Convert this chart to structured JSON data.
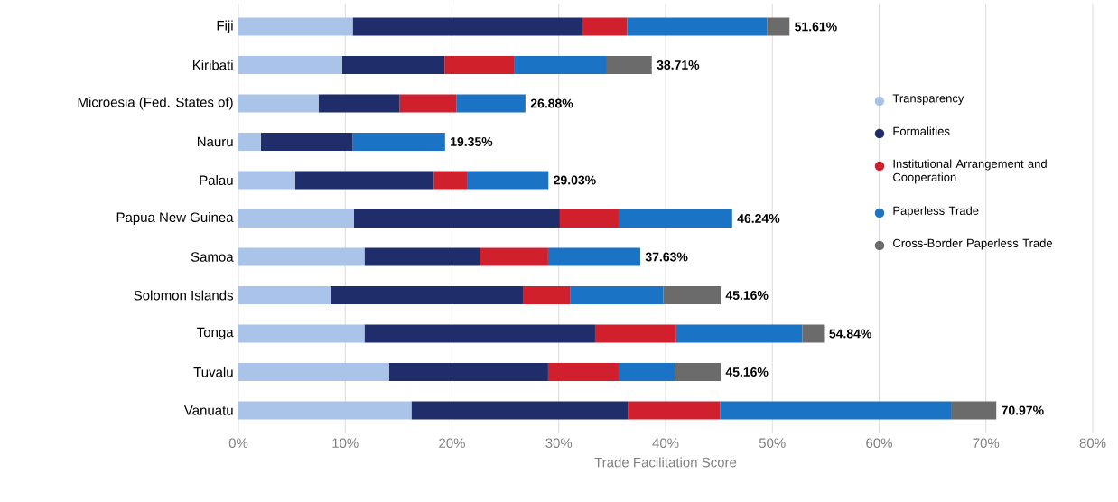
{
  "chart_data": {
    "type": "bar",
    "orientation": "horizontal",
    "stacked": true,
    "xlabel": "Trade Facilitation Score",
    "categories": [
      "Fiji",
      "Kiribati",
      "Microesia (Fed. States of)",
      "Nauru",
      "Palau",
      "Papua New Guinea",
      "Samoa",
      "Solomon Islands",
      "Tonga",
      "Tuvalu",
      "Vanuatu"
    ],
    "series": [
      {
        "name": "Transparency",
        "color": "#a9c4e8",
        "values": [
          10.7,
          9.7,
          7.5,
          2.1,
          5.3,
          10.8,
          11.8,
          8.6,
          11.8,
          14.1,
          16.2
        ]
      },
      {
        "name": "Formalities",
        "color": "#1f2d6b",
        "values": [
          21.5,
          9.6,
          7.6,
          8.6,
          13.0,
          19.3,
          10.8,
          18.1,
          21.6,
          14.9,
          20.3
        ]
      },
      {
        "name": "Institutional Arrangement and Cooperation",
        "color": "#d0202e",
        "values": [
          4.2,
          6.5,
          5.3,
          0,
          3.1,
          5.5,
          6.4,
          4.4,
          7.6,
          6.6,
          8.6
        ]
      },
      {
        "name": "Paperless Trade",
        "color": "#1a73c4",
        "values": [
          13.1,
          8.7,
          6.48,
          8.65,
          7.63,
          10.64,
          8.63,
          8.7,
          11.8,
          5.3,
          21.7
        ]
      },
      {
        "name": "Cross-Border Paperless Trade",
        "color": "#6b6b6b",
        "values": [
          2.11,
          4.21,
          0,
          0,
          0,
          0,
          0,
          5.36,
          2.04,
          4.26,
          4.17
        ]
      }
    ],
    "totals": [
      "51.61%",
      "38.71%",
      "26.88%",
      "19.35%",
      "29.03%",
      "46.24%",
      "37.63%",
      "45.16%",
      "54.84%",
      "45.16%",
      "70.97%"
    ],
    "xlim": [
      0,
      80
    ],
    "xticks": [
      {
        "value": 0,
        "label": "0%"
      },
      {
        "value": 10,
        "label": "10%"
      },
      {
        "value": 20,
        "label": "20%"
      },
      {
        "value": 30,
        "label": "30%"
      },
      {
        "value": 40,
        "label": "40%"
      },
      {
        "value": 50,
        "label": "50%"
      },
      {
        "value": 60,
        "label": "60%"
      },
      {
        "value": 70,
        "label": "70%"
      },
      {
        "value": 80,
        "label": "80%"
      }
    ],
    "grid": "x",
    "legend": "right"
  }
}
